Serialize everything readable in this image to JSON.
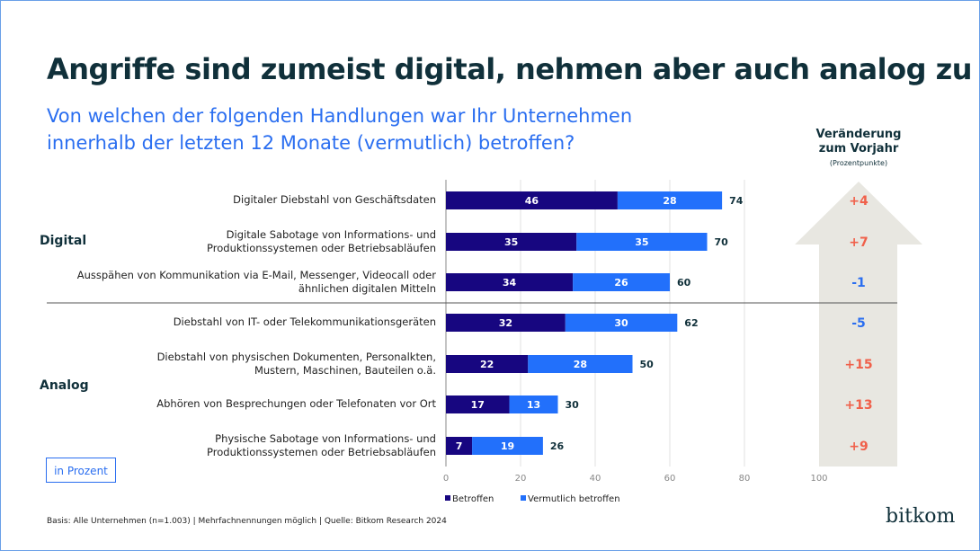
{
  "title": "Angriffe sind zumeist digital, nehmen aber auch analog zu",
  "subtitle": "Von welchen der folgenden Handlungen war Ihr Unternehmen innerhalb der letzten 12 Monate (vermutlich) betroffen?",
  "change_header": {
    "line1": "Veränderung",
    "line2": "zum Vorjahr",
    "unit": "(Prozentpunkte)"
  },
  "groups": {
    "digital": "Digital",
    "analog": "Analog"
  },
  "unit_label": "in Prozent",
  "footnote": "Basis: Alle Unternehmen (n=1.003) | Mehrfachnennungen möglich | Quelle: Bitkom Research 2024",
  "logo": "bitkom",
  "colors": {
    "betroffen": "#170680",
    "vermutlich": "#2270fb",
    "positive": "#f0604a",
    "negative": "#2a6ef0",
    "arrow": "#e8e7e1"
  },
  "chart_data": {
    "type": "bar",
    "orientation": "horizontal",
    "stacked": true,
    "categories": [
      "Digitaler Diebstahl von Geschäftsdaten",
      "Digitale Sabotage von Informations- und Produktionssystemen oder Betriebsabläufen",
      "Ausspähen von Kommunikation via E-Mail, Messenger, Videocall oder ähnlichen digitalen Mitteln",
      "Diebstahl von IT- oder Telekommunikationsgeräten",
      "Diebstahl von physischen Dokumenten, Personalkten, Mustern, Maschinen, Bauteilen o.ä.",
      "Abhören von Besprechungen oder Telefonaten vor Ort",
      "Physische Sabotage von Informations- und Produktionssystemen oder Betriebsabläufen"
    ],
    "series": [
      {
        "name": "Betroffen",
        "values": [
          46,
          35,
          34,
          32,
          22,
          17,
          7
        ]
      },
      {
        "name": "Vermutlich betroffen",
        "values": [
          28,
          35,
          26,
          30,
          28,
          13,
          19
        ]
      }
    ],
    "totals": [
      74,
      70,
      60,
      62,
      50,
      30,
      26
    ],
    "changes": [
      "+4",
      "+7",
      "-1",
      "-5",
      "+15",
      "+13",
      "+9"
    ],
    "xticks": [
      0,
      20,
      40,
      60,
      80,
      100
    ],
    "xlim": [
      0,
      100
    ],
    "grid": true,
    "legend": "bottom"
  }
}
